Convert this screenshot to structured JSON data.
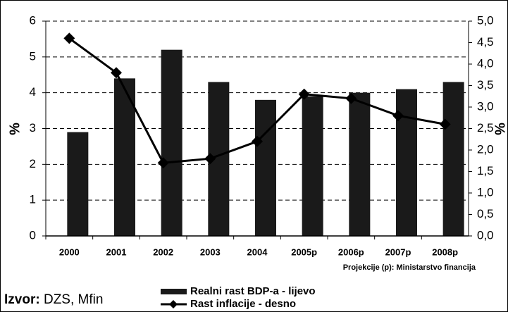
{
  "chart_data": {
    "type": "bar_line",
    "categories": [
      "2000",
      "2001",
      "2002",
      "2003",
      "2004",
      "2005p",
      "2006p",
      "2007p",
      "2008p"
    ],
    "series": [
      {
        "name": "Realni rast BDP-a - lijevo",
        "type": "bar",
        "color": "#1a1a1a",
        "values": [
          2.9,
          4.4,
          5.2,
          4.3,
          3.8,
          3.9,
          4.0,
          4.1,
          4.3
        ]
      },
      {
        "name": "Rast inflacije - desno",
        "type": "line",
        "axis": "y2",
        "color": "#000000",
        "marker": "diamond",
        "values": [
          4.6,
          3.8,
          1.7,
          1.8,
          2.2,
          3.3,
          3.2,
          2.8,
          2.6
        ]
      }
    ],
    "ylabel": "%",
    "y2label": "%",
    "ylim": [
      0,
      6
    ],
    "yticks": [
      0,
      1,
      2,
      3,
      4,
      5,
      6
    ],
    "y2lim": [
      0,
      5
    ],
    "y2ticks": [
      {
        "value": 0,
        "label": "0,0"
      },
      {
        "value": 0.5,
        "label": "0,5"
      },
      {
        "value": 1,
        "label": "1,0"
      },
      {
        "value": 1.5,
        "label": "1,5"
      },
      {
        "value": 2,
        "label": "2,0"
      },
      {
        "value": 2.5,
        "label": "2,5"
      },
      {
        "value": 3,
        "label": "3,0"
      },
      {
        "value": 3.5,
        "label": "3,5"
      },
      {
        "value": 4,
        "label": "4,0"
      },
      {
        "value": 4.5,
        "label": "4,5"
      },
      {
        "value": 5,
        "label": "5,0"
      }
    ],
    "grid": true,
    "legend": "bottom",
    "annotation": "Projekcije (p): Ministarstvo financija",
    "source_label": "Izvor:",
    "source": "DZS, Mfin"
  }
}
